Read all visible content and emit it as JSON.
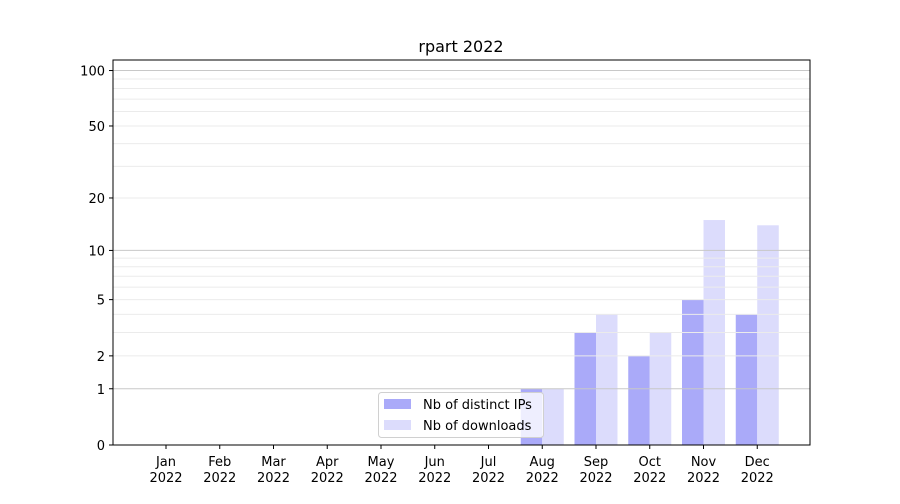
{
  "chart_data": {
    "type": "bar",
    "title": "rpart 2022",
    "xlabel": "",
    "ylabel": "",
    "yscale": "log(1+y)",
    "ylim": [
      0,
      114
    ],
    "yticks": [
      0,
      1,
      2,
      5,
      10,
      20,
      50,
      100
    ],
    "grid": true,
    "legend_position": "bottom-center",
    "categories": [
      "Jan\n2022",
      "Feb\n2022",
      "Mar\n2022",
      "Apr\n2022",
      "May\n2022",
      "Jun\n2022",
      "Jul\n2022",
      "Aug\n2022",
      "Sep\n2022",
      "Oct\n2022",
      "Nov\n2022",
      "Dec\n2022"
    ],
    "series": [
      {
        "name": "Nb of distinct IPs",
        "color": "#aaaaf9",
        "values": [
          0,
          0,
          0,
          0,
          0,
          0,
          0,
          1,
          3,
          2,
          5,
          4
        ]
      },
      {
        "name": "Nb of downloads",
        "color": "#dcdcfc",
        "values": [
          0,
          0,
          0,
          0,
          0,
          0,
          0,
          1,
          4,
          3,
          15,
          14
        ]
      }
    ]
  }
}
